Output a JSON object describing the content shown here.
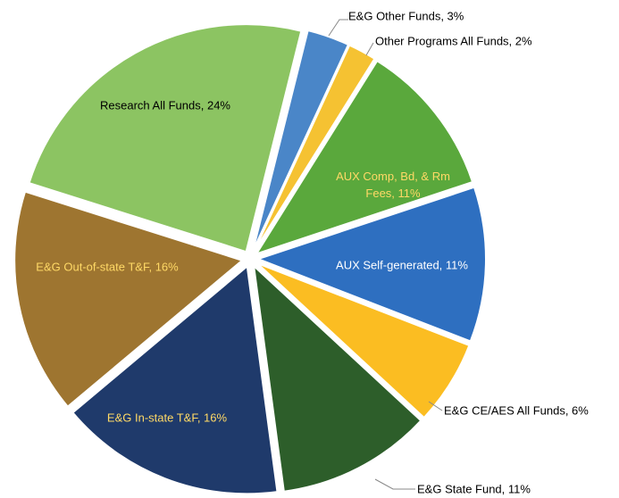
{
  "chart_data": {
    "type": "pie",
    "values": [
      3,
      2,
      11,
      11,
      6,
      11,
      16,
      16,
      24
    ],
    "value_labels": [
      "E&G Other Funds, 3%",
      "Other Programs All Funds, 2%",
      "AUX Comp, Bd, & Rm Fees, 11%",
      "AUX Self-generated, 11%",
      "E&G CE/AES All Funds, 6%",
      "E&G State Fund, 11%",
      "E&G In-state T&F, 16%",
      "E&G Out-of-state T&F, 16%",
      "Research All Funds, 24%"
    ],
    "colors": [
      "#4a86c8",
      "#f5c232",
      "#5aa83c",
      "#2e6fc0",
      "#fbbd22",
      "#2d5e2a",
      "#1f3a6b",
      "#9e7530",
      "#8cc462"
    ],
    "label_colors": [
      "#000000",
      "#000000",
      "#ffd966",
      "#ffffff",
      "#000000",
      "#000000",
      "#ffd966",
      "#ffd966",
      "#000000"
    ]
  }
}
